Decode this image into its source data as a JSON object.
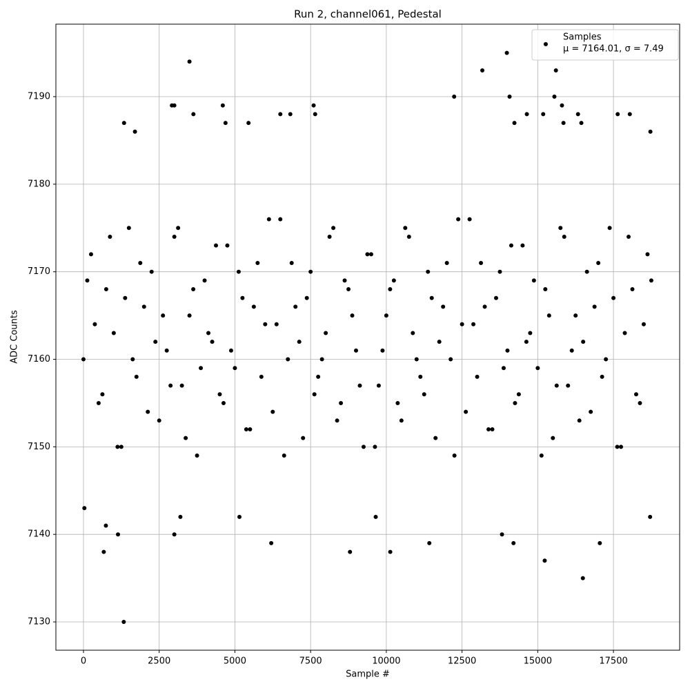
{
  "chart_data": {
    "type": "scatter",
    "title": "Run 2, channel061, Pedestal",
    "x_label": "Sample #",
    "y_label": "ADC Counts",
    "xlim": [
      -911,
      19686
    ],
    "ylim": [
      7126.77,
      7198.28
    ],
    "xticks": [
      0,
      2500,
      5000,
      7500,
      10000,
      12500,
      15000,
      17500
    ],
    "yticks": [
      7130,
      7140,
      7150,
      7160,
      7170,
      7180,
      7190
    ],
    "grid": true,
    "legend": "upper right",
    "series": [
      {
        "name": "Samples",
        "stats": "μ = 7164.01, σ = 7.49",
        "color": "#000000",
        "x": [
          1330,
          3500,
          13980,
          15250,
          15600,
          13170,
          12240,
          14070,
          15550,
          16490,
          15230,
          670,
          8800,
          10130,
          6200,
          11420,
          14200,
          17050,
          1140,
          3000,
          13820,
          2920,
          3000,
          4600,
          7600,
          15800,
          7650,
          6500,
          6830,
          3630,
          16330,
          17640,
          18040,
          14640,
          15180,
          1340,
          1700,
          4690,
          5450,
          14230,
          15850,
          16440,
          18720,
          30,
          740,
          9650,
          18710,
          5150,
          3200,
          0,
          250,
          500,
          750,
          1000,
          1250,
          1500,
          1750,
          2000,
          2250,
          2500,
          2750,
          3000,
          3250,
          3500,
          3750,
          4000,
          4250,
          4500,
          4750,
          5000,
          5250,
          5500,
          5750,
          6000,
          6250,
          6500,
          6750,
          7000,
          7250,
          7500,
          7750,
          8000,
          8250,
          8500,
          8750,
          9000,
          9250,
          9500,
          9750,
          10000,
          10250,
          10500,
          10750,
          11000,
          11250,
          11500,
          11750,
          12000,
          12250,
          12500,
          12750,
          13000,
          13250,
          13500,
          13750,
          14000,
          14250,
          14500,
          14750,
          15000,
          15250,
          15500,
          15750,
          16000,
          16250,
          16500,
          16750,
          17000,
          17250,
          17500,
          17750,
          18000,
          18250,
          18500,
          18750,
          125,
          375,
          625,
          875,
          1125,
          1375,
          1625,
          1875,
          2125,
          2375,
          2625,
          2875,
          3125,
          3375,
          3625,
          3875,
          4125,
          4375,
          4625,
          4875,
          5125,
          5375,
          5625,
          5875,
          6125,
          6375,
          6625,
          6875,
          7125,
          7375,
          7625,
          7875,
          8125,
          8375,
          8625,
          8875,
          9125,
          9375,
          9625,
          9875,
          10125,
          10375,
          10625,
          10875,
          11125,
          11375,
          11625,
          11875,
          12125,
          12375,
          12625,
          12875,
          13125,
          13375,
          13625,
          13875,
          14125,
          14375,
          14625,
          14875,
          15125,
          15375,
          15625,
          15875,
          16125,
          16375,
          16625,
          16875,
          17125,
          17375,
          17625,
          17875,
          18125,
          18375,
          18625
        ],
        "values": [
          7130,
          7194,
          7195,
          7196,
          7193,
          7193,
          7190,
          7190,
          7190,
          7135,
          7137,
          7138,
          7138,
          7138,
          7139,
          7139,
          7139,
          7139,
          7140,
          7140,
          7140,
          7189,
          7189,
          7189,
          7189,
          7189,
          7188,
          7188,
          7188,
          7188,
          7188,
          7188,
          7188,
          7188,
          7188,
          7187,
          7186,
          7187,
          7187,
          7187,
          7187,
          7187,
          7186,
          7143,
          7141,
          7142,
          7142,
          7142,
          7142,
          7160,
          7172,
          7155,
          7168,
          7163,
          7150,
          7175,
          7158,
          7166,
          7170,
          7153,
          7161,
          7174,
          7157,
          7165,
          7149,
          7169,
          7162,
          7156,
          7173,
          7159,
          7167,
          7152,
          7171,
          7164,
          7154,
          7176,
          7160,
          7166,
          7151,
          7170,
          7158,
          7163,
          7175,
          7155,
          7168,
          7161,
          7150,
          7172,
          7157,
          7165,
          7169,
          7153,
          7174,
          7160,
          7156,
          7167,
          7162,
          7171,
          7149,
          7164,
          7176,
          7158,
          7166,
          7152,
          7170,
          7161,
          7155,
          7173,
          7163,
          7159,
          7168,
          7151,
          7175,
          7157,
          7165,
          7162,
          7154,
          7171,
          7160,
          7167,
          7150,
          7174,
          7156,
          7164,
          7169,
          7169,
          7164,
          7156,
          7174,
          7150,
          7167,
          7160,
          7171,
          7154,
          7162,
          7165,
          7157,
          7175,
          7151,
          7168,
          7159,
          7163,
          7173,
          7155,
          7161,
          7170,
          7152,
          7166,
          7158,
          7176,
          7164,
          7149,
          7171,
          7162,
          7167,
          7156,
          7160,
          7174,
          7153,
          7169,
          7165,
          7157,
          7172,
          7150,
          7161,
          7168,
          7155,
          7175,
          7163,
          7158,
          7170,
          7151,
          7166,
          7160,
          7176,
          7154,
          7164,
          7171,
          7152,
          7167,
          7159,
          7173,
          7156,
          7162,
          7169,
          7149,
          7165,
          7157,
          7174,
          7161,
          7153,
          7170,
          7166,
          7158,
          7175,
          7150,
          7163,
          7168,
          7155,
          7172
        ]
      }
    ]
  }
}
